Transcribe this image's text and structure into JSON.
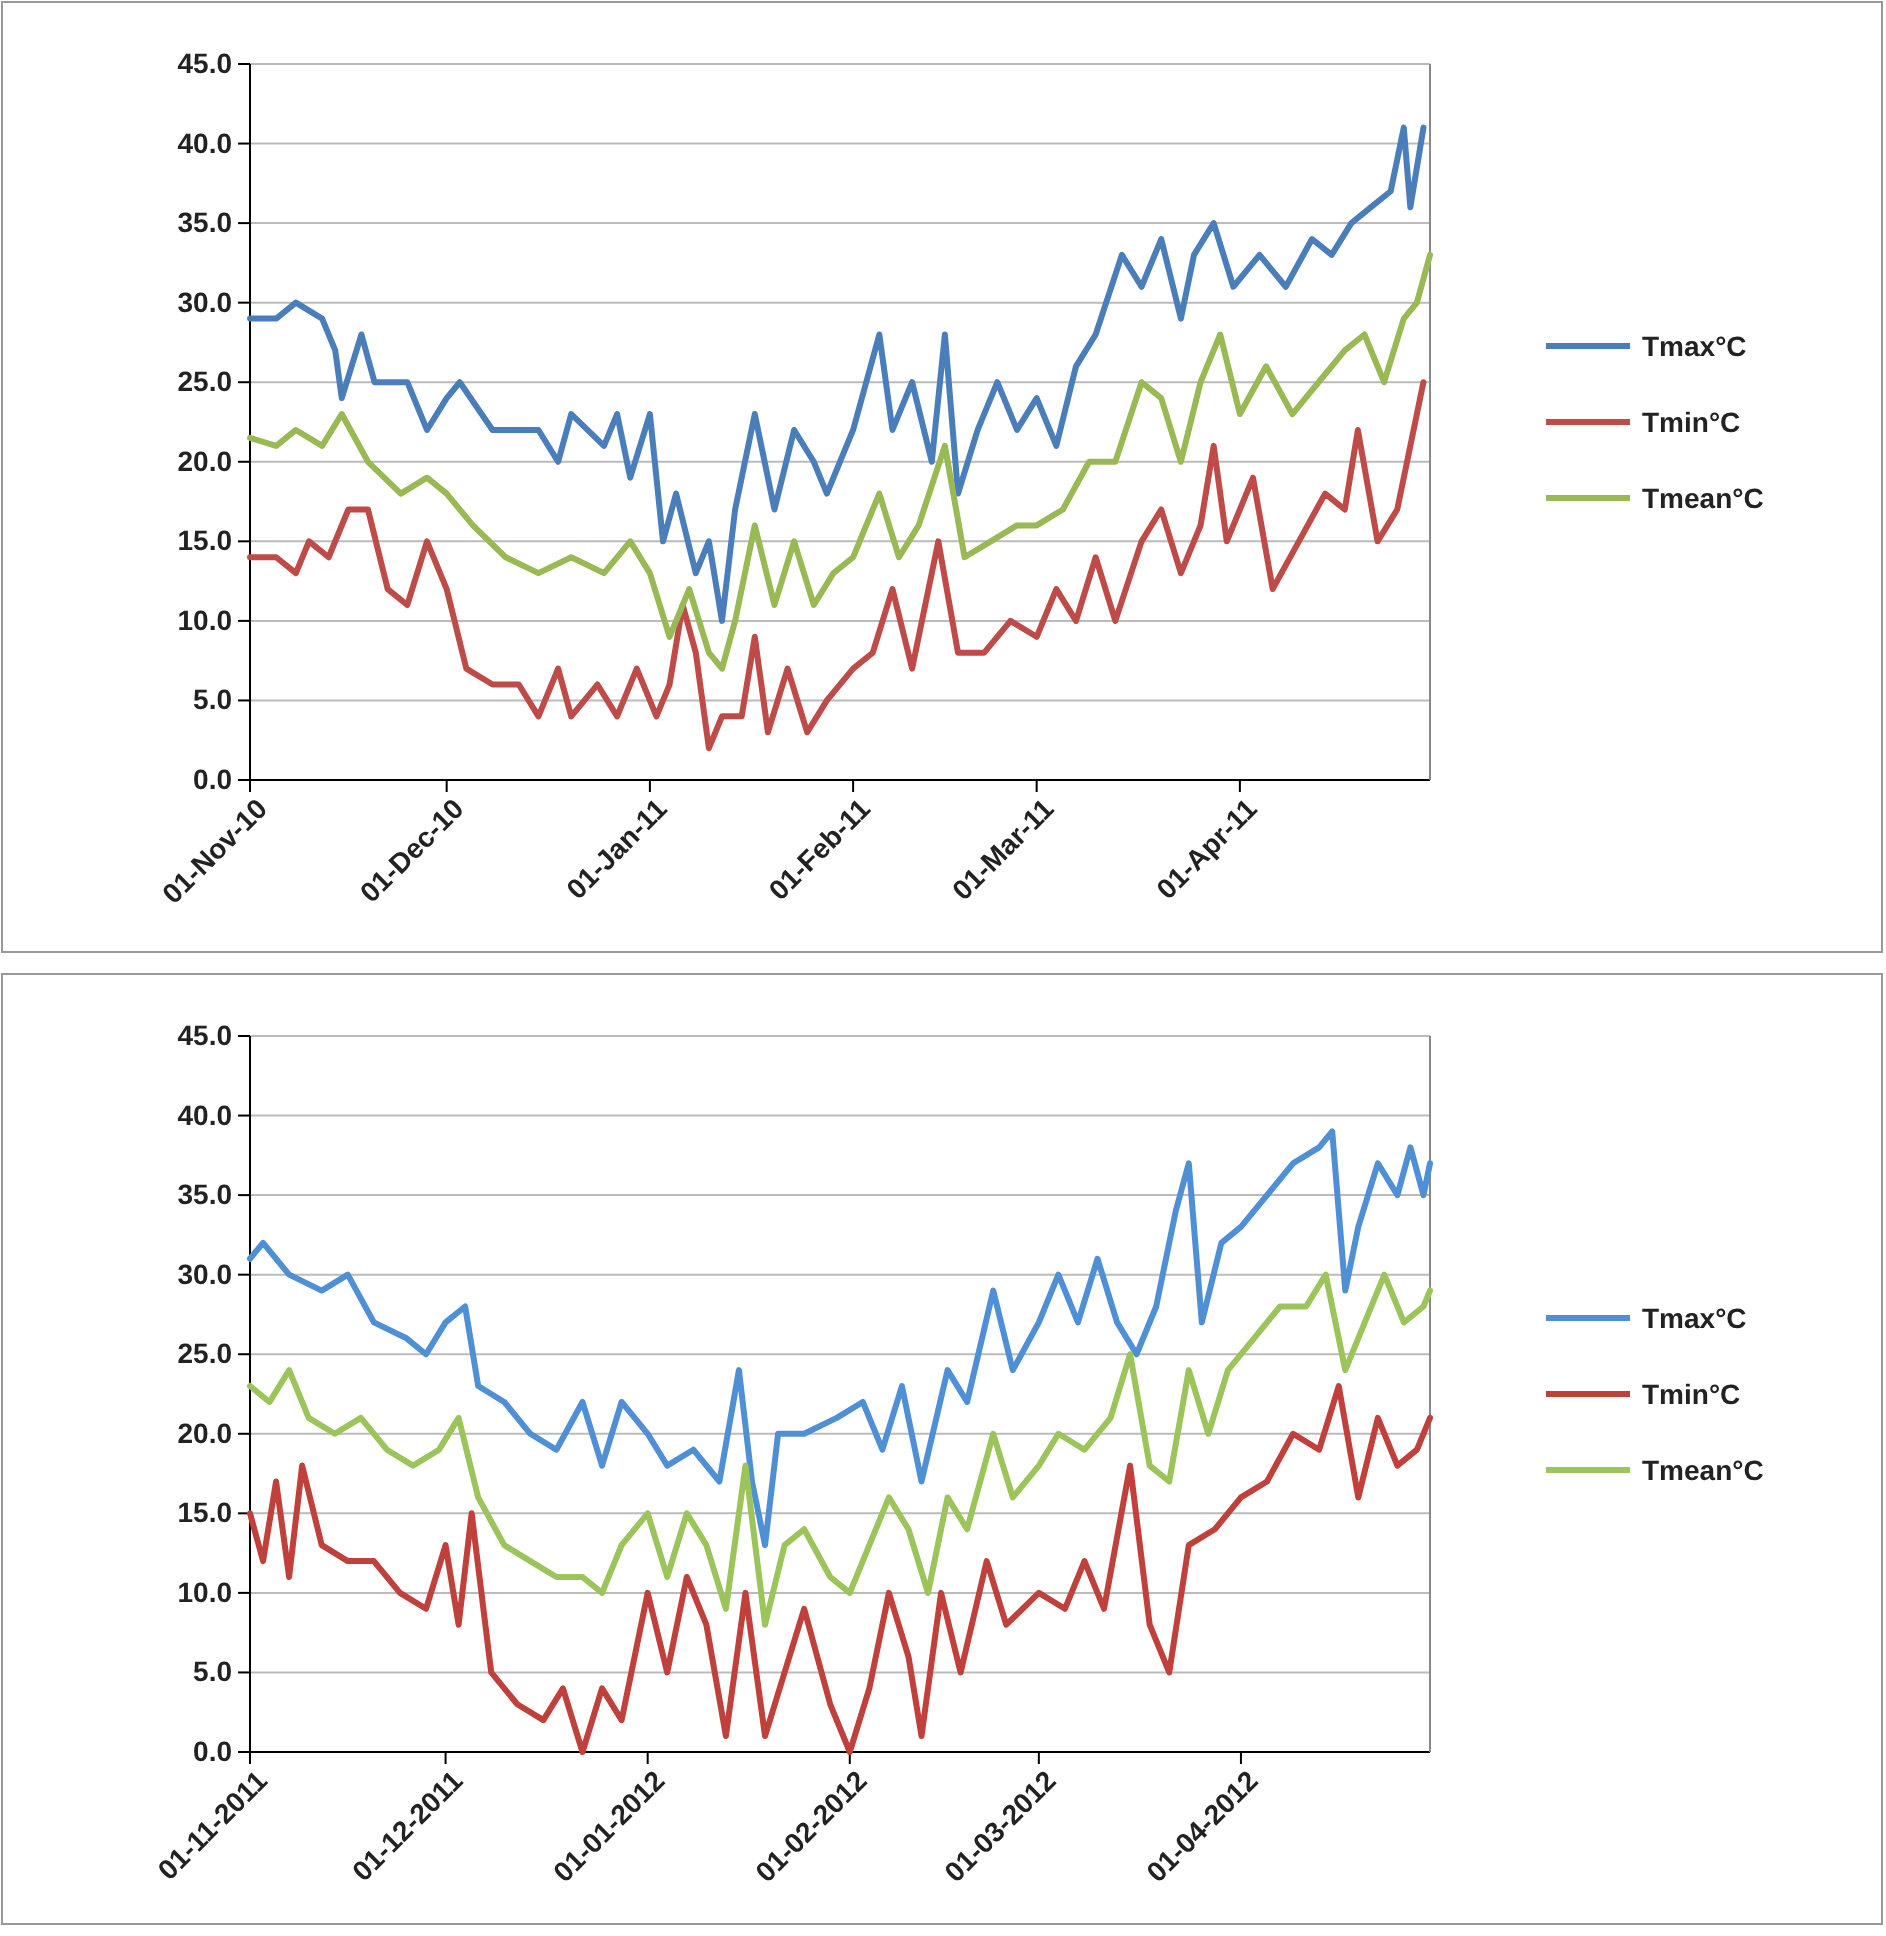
{
  "chart_data": [
    {
      "type": "line",
      "ylim": [
        0,
        45
      ],
      "yticks": [
        {
          "value": 0,
          "label": "0.0"
        },
        {
          "value": 5,
          "label": "5.0"
        },
        {
          "value": 10,
          "label": "10.0"
        },
        {
          "value": 15,
          "label": "15.0"
        },
        {
          "value": 20,
          "label": "20.0"
        },
        {
          "value": 25,
          "label": "25.0"
        },
        {
          "value": 30,
          "label": "30.0"
        },
        {
          "value": 35,
          "label": "35.0"
        },
        {
          "value": 40,
          "label": "40.0"
        },
        {
          "value": 45,
          "label": "45.0"
        }
      ],
      "xlim": [
        "2010-11-01",
        "2011-04-30"
      ],
      "xticks": [
        {
          "value": "2010-11-01",
          "label": "01-Nov-10"
        },
        {
          "value": "2010-12-01",
          "label": "01-Dec-10"
        },
        {
          "value": "2011-01-01",
          "label": "01-Jan-11"
        },
        {
          "value": "2011-02-01",
          "label": "01-Feb-11"
        },
        {
          "value": "2011-03-01",
          "label": "01-Mar-11"
        },
        {
          "value": "2011-04-01",
          "label": "01-Apr-11"
        }
      ],
      "grid": "y",
      "legend": "right",
      "series": [
        {
          "name": "Tmax°C",
          "color": "#4a7ebb",
          "x": [
            "2010-11-01",
            "2010-11-05",
            "2010-11-08",
            "2010-11-12",
            "2010-11-14",
            "2010-11-15",
            "2010-11-18",
            "2010-11-20",
            "2010-11-25",
            "2010-11-28",
            "2010-12-01",
            "2010-12-03",
            "2010-12-08",
            "2010-12-15",
            "2010-12-18",
            "2010-12-20",
            "2010-12-25",
            "2010-12-27",
            "2010-12-29",
            "2011-01-01",
            "2011-01-03",
            "2011-01-05",
            "2011-01-08",
            "2011-01-10",
            "2011-01-12",
            "2011-01-14",
            "2011-01-17",
            "2011-01-20",
            "2011-01-23",
            "2011-01-26",
            "2011-01-28",
            "2011-02-01",
            "2011-02-05",
            "2011-02-07",
            "2011-02-10",
            "2011-02-13",
            "2011-02-15",
            "2011-02-17",
            "2011-02-20",
            "2011-02-23",
            "2011-02-26",
            "2011-03-01",
            "2011-03-04",
            "2011-03-07",
            "2011-03-10",
            "2011-03-14",
            "2011-03-17",
            "2011-03-20",
            "2011-03-23",
            "2011-03-25",
            "2011-03-28",
            "2011-03-31",
            "2011-04-04",
            "2011-04-08",
            "2011-04-12",
            "2011-04-15",
            "2011-04-18",
            "2011-04-21",
            "2011-04-24",
            "2011-04-26",
            "2011-04-27",
            "2011-04-29"
          ],
          "values": [
            29,
            29,
            30,
            29,
            27,
            24,
            28,
            25,
            25,
            22,
            24,
            25,
            22,
            22,
            20,
            23,
            21,
            23,
            19,
            23,
            15,
            18,
            13,
            15,
            10,
            17,
            23,
            17,
            22,
            20,
            18,
            22,
            28,
            22,
            25,
            20,
            28,
            18,
            22,
            25,
            22,
            24,
            21,
            26,
            28,
            33,
            31,
            34,
            29,
            33,
            35,
            31,
            33,
            31,
            34,
            33,
            35,
            36,
            37,
            41,
            36,
            41
          ]
        },
        {
          "name": "Tmin°C",
          "color": "#be4b48",
          "x": [
            "2010-11-01",
            "2010-11-05",
            "2010-11-08",
            "2010-11-10",
            "2010-11-13",
            "2010-11-16",
            "2010-11-19",
            "2010-11-22",
            "2010-11-25",
            "2010-11-28",
            "2010-12-01",
            "2010-12-04",
            "2010-12-08",
            "2010-12-12",
            "2010-12-15",
            "2010-12-18",
            "2010-12-20",
            "2010-12-24",
            "2010-12-27",
            "2010-12-30",
            "2011-01-02",
            "2011-01-04",
            "2011-01-06",
            "2011-01-08",
            "2011-01-10",
            "2011-01-12",
            "2011-01-15",
            "2011-01-17",
            "2011-01-19",
            "2011-01-22",
            "2011-01-25",
            "2011-01-28",
            "2011-02-01",
            "2011-02-04",
            "2011-02-07",
            "2011-02-10",
            "2011-02-14",
            "2011-02-17",
            "2011-02-21",
            "2011-02-25",
            "2011-03-01",
            "2011-03-04",
            "2011-03-07",
            "2011-03-10",
            "2011-03-13",
            "2011-03-17",
            "2011-03-20",
            "2011-03-23",
            "2011-03-26",
            "2011-03-28",
            "2011-03-30",
            "2011-04-03",
            "2011-04-06",
            "2011-04-10",
            "2011-04-14",
            "2011-04-17",
            "2011-04-19",
            "2011-04-22",
            "2011-04-25",
            "2011-04-29"
          ],
          "values": [
            14,
            14,
            13,
            15,
            14,
            17,
            17,
            12,
            11,
            15,
            12,
            7,
            6,
            6,
            4,
            7,
            4,
            6,
            4,
            7,
            4,
            6,
            11,
            8,
            2,
            4,
            4,
            9,
            3,
            7,
            3,
            5,
            7,
            8,
            12,
            7,
            15,
            8,
            8,
            10,
            9,
            12,
            10,
            14,
            10,
            15,
            17,
            13,
            16,
            21,
            15,
            19,
            12,
            15,
            18,
            17,
            22,
            15,
            17,
            25
          ]
        },
        {
          "name": "Tmean°C",
          "color": "#98b954",
          "x": [
            "2010-11-01",
            "2010-11-05",
            "2010-11-08",
            "2010-11-12",
            "2010-11-15",
            "2010-11-19",
            "2010-11-24",
            "2010-11-28",
            "2010-12-01",
            "2010-12-05",
            "2010-12-10",
            "2010-12-15",
            "2010-12-20",
            "2010-12-25",
            "2010-12-29",
            "2011-01-01",
            "2011-01-04",
            "2011-01-07",
            "2011-01-10",
            "2011-01-12",
            "2011-01-14",
            "2011-01-17",
            "2011-01-20",
            "2011-01-23",
            "2011-01-26",
            "2011-01-29",
            "2011-02-01",
            "2011-02-05",
            "2011-02-08",
            "2011-02-11",
            "2011-02-15",
            "2011-02-18",
            "2011-02-22",
            "2011-02-26",
            "2011-03-01",
            "2011-03-05",
            "2011-03-09",
            "2011-03-13",
            "2011-03-17",
            "2011-03-20",
            "2011-03-23",
            "2011-03-26",
            "2011-03-29",
            "2011-04-01",
            "2011-04-05",
            "2011-04-09",
            "2011-04-13",
            "2011-04-17",
            "2011-04-20",
            "2011-04-23",
            "2011-04-26",
            "2011-04-28",
            "2011-04-30"
          ],
          "values": [
            21.5,
            21,
            22,
            21,
            23,
            20,
            18,
            19,
            18,
            16,
            14,
            13,
            14,
            13,
            15,
            13,
            9,
            12,
            8,
            7,
            10,
            16,
            11,
            15,
            11,
            13,
            14,
            18,
            14,
            16,
            21,
            14,
            15,
            16,
            16,
            17,
            20,
            20,
            25,
            24,
            20,
            25,
            28,
            23,
            26,
            23,
            25,
            27,
            28,
            25,
            29,
            30,
            33
          ]
        }
      ]
    },
    {
      "type": "line",
      "ylim": [
        0,
        45
      ],
      "yticks": [
        {
          "value": 0,
          "label": "0.0"
        },
        {
          "value": 5,
          "label": "5.0"
        },
        {
          "value": 10,
          "label": "10.0"
        },
        {
          "value": 15,
          "label": "15.0"
        },
        {
          "value": 20,
          "label": "20.0"
        },
        {
          "value": 25,
          "label": "25.0"
        },
        {
          "value": 30,
          "label": "30.0"
        },
        {
          "value": 35,
          "label": "35.0"
        },
        {
          "value": 40,
          "label": "40.0"
        },
        {
          "value": 45,
          "label": "45.0"
        }
      ],
      "xlim": [
        "2011-11-01",
        "2012-04-30"
      ],
      "xticks": [
        {
          "value": "2011-11-01",
          "label": "01-11-2011"
        },
        {
          "value": "2011-12-01",
          "label": "01-12-2011"
        },
        {
          "value": "2012-01-01",
          "label": "01-01-2012"
        },
        {
          "value": "2012-02-01",
          "label": "01-02-2012"
        },
        {
          "value": "2012-03-01",
          "label": "01-03-2012"
        },
        {
          "value": "2012-04-01",
          "label": "01-04-2012"
        }
      ],
      "grid": "y",
      "legend": "right",
      "series": [
        {
          "name": "Tmax°C",
          "color": "#4f8fd6",
          "x": [
            "2011-11-01",
            "2011-11-03",
            "2011-11-07",
            "2011-11-12",
            "2011-11-16",
            "2011-11-20",
            "2011-11-25",
            "2011-11-28",
            "2011-12-01",
            "2011-12-04",
            "2011-12-06",
            "2011-12-10",
            "2011-12-14",
            "2011-12-18",
            "2011-12-22",
            "2011-12-25",
            "2011-12-28",
            "2012-01-01",
            "2012-01-04",
            "2012-01-08",
            "2012-01-12",
            "2012-01-15",
            "2012-01-17",
            "2012-01-19",
            "2012-01-21",
            "2012-01-25",
            "2012-01-30",
            "2012-02-03",
            "2012-02-06",
            "2012-02-09",
            "2012-02-12",
            "2012-02-16",
            "2012-02-19",
            "2012-02-23",
            "2012-02-26",
            "2012-03-01",
            "2012-03-04",
            "2012-03-07",
            "2012-03-10",
            "2012-03-13",
            "2012-03-16",
            "2012-03-19",
            "2012-03-22",
            "2012-03-24",
            "2012-03-26",
            "2012-03-29",
            "2012-04-01",
            "2012-04-05",
            "2012-04-09",
            "2012-04-13",
            "2012-04-15",
            "2012-04-17",
            "2012-04-19",
            "2012-04-22",
            "2012-04-25",
            "2012-04-27",
            "2012-04-29",
            "2012-04-30"
          ],
          "values": [
            31,
            32,
            30,
            29,
            30,
            27,
            26,
            25,
            27,
            28,
            23,
            22,
            20,
            19,
            22,
            18,
            22,
            20,
            18,
            19,
            17,
            24,
            17,
            13,
            20,
            20,
            21,
            22,
            19,
            23,
            17,
            24,
            22,
            29,
            24,
            27,
            30,
            27,
            31,
            27,
            25,
            28,
            34,
            37,
            27,
            32,
            33,
            35,
            37,
            38,
            39,
            29,
            33,
            37,
            35,
            38,
            35,
            37
          ]
        },
        {
          "name": "Tmin°C",
          "color": "#c0403c",
          "x": [
            "2011-11-01",
            "2011-11-03",
            "2011-11-05",
            "2011-11-07",
            "2011-11-09",
            "2011-11-12",
            "2011-11-16",
            "2011-11-20",
            "2011-11-24",
            "2011-11-28",
            "2011-12-01",
            "2011-12-03",
            "2011-12-05",
            "2011-12-08",
            "2011-12-12",
            "2011-12-16",
            "2011-12-19",
            "2011-12-22",
            "2011-12-25",
            "2011-12-28",
            "2012-01-01",
            "2012-01-04",
            "2012-01-07",
            "2012-01-10",
            "2012-01-13",
            "2012-01-16",
            "2012-01-19",
            "2012-01-22",
            "2012-01-25",
            "2012-01-29",
            "2012-02-01",
            "2012-02-04",
            "2012-02-07",
            "2012-02-10",
            "2012-02-12",
            "2012-02-15",
            "2012-02-18",
            "2012-02-22",
            "2012-02-25",
            "2012-03-01",
            "2012-03-05",
            "2012-03-08",
            "2012-03-11",
            "2012-03-15",
            "2012-03-18",
            "2012-03-21",
            "2012-03-24",
            "2012-03-28",
            "2012-04-01",
            "2012-04-05",
            "2012-04-09",
            "2012-04-13",
            "2012-04-16",
            "2012-04-19",
            "2012-04-22",
            "2012-04-25",
            "2012-04-28",
            "2012-04-30"
          ],
          "values": [
            15,
            12,
            17,
            11,
            18,
            13,
            12,
            12,
            10,
            9,
            13,
            8,
            15,
            5,
            3,
            2,
            4,
            0,
            4,
            2,
            10,
            5,
            11,
            8,
            1,
            10,
            1,
            5,
            9,
            3,
            0,
            4,
            10,
            6,
            1,
            10,
            5,
            12,
            8,
            10,
            9,
            12,
            9,
            18,
            8,
            5,
            13,
            14,
            16,
            17,
            20,
            19,
            23,
            16,
            21,
            18,
            19,
            21
          ]
        },
        {
          "name": "Tmean°C",
          "color": "#9bc45a",
          "x": [
            "2011-11-01",
            "2011-11-04",
            "2011-11-07",
            "2011-11-10",
            "2011-11-14",
            "2011-11-18",
            "2011-11-22",
            "2011-11-26",
            "2011-11-30",
            "2011-12-03",
            "2011-12-06",
            "2011-12-10",
            "2011-12-14",
            "2011-12-18",
            "2011-12-22",
            "2011-12-25",
            "2011-12-28",
            "2012-01-01",
            "2012-01-04",
            "2012-01-07",
            "2012-01-10",
            "2012-01-13",
            "2012-01-16",
            "2012-01-19",
            "2012-01-22",
            "2012-01-25",
            "2012-01-29",
            "2012-02-01",
            "2012-02-04",
            "2012-02-07",
            "2012-02-10",
            "2012-02-13",
            "2012-02-16",
            "2012-02-19",
            "2012-02-23",
            "2012-02-26",
            "2012-03-01",
            "2012-03-04",
            "2012-03-08",
            "2012-03-12",
            "2012-03-15",
            "2012-03-18",
            "2012-03-21",
            "2012-03-24",
            "2012-03-27",
            "2012-03-30",
            "2012-04-03",
            "2012-04-07",
            "2012-04-11",
            "2012-04-14",
            "2012-04-17",
            "2012-04-20",
            "2012-04-23",
            "2012-04-26",
            "2012-04-29",
            "2012-04-30"
          ],
          "values": [
            23,
            22,
            24,
            21,
            20,
            21,
            19,
            18,
            19,
            21,
            16,
            13,
            12,
            11,
            11,
            10,
            13,
            15,
            11,
            15,
            13,
            9,
            18,
            8,
            13,
            14,
            11,
            10,
            13,
            16,
            14,
            10,
            16,
            14,
            20,
            16,
            18,
            20,
            19,
            21,
            25,
            18,
            17,
            24,
            20,
            24,
            26,
            28,
            28,
            30,
            24,
            27,
            30,
            27,
            28,
            29
          ]
        }
      ]
    }
  ]
}
